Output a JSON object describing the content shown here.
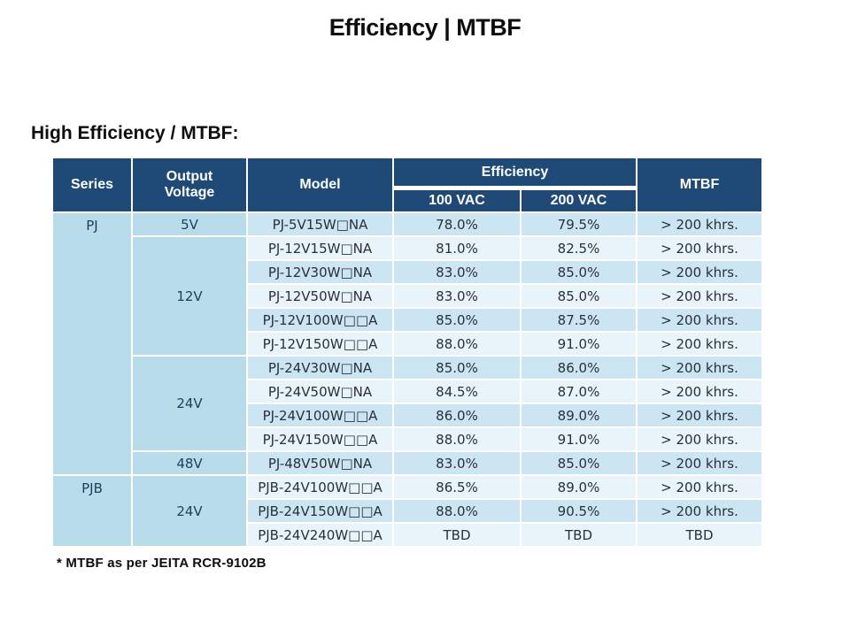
{
  "slide": {
    "title": "Efficiency | MTBF",
    "subtitle": "High Efficiency / MTBF:",
    "footnote": "* MTBF as per JEITA RCR-9102B"
  },
  "colors": {
    "header_bg": "#1f4a78",
    "group_cell_bg": "#b9dcea",
    "row_dark_bg": "#cbe6f2",
    "row_light_bg": "#e9f4fa",
    "cell_text": "#2b2f38",
    "group_text": "#1c3e5c",
    "heading_text": "#0d0d0d"
  },
  "table": {
    "headers": {
      "series": "Series",
      "output_voltage": "Output\nVoltage",
      "model": "Model",
      "efficiency": "Efficiency",
      "vac_100": "100 VAC",
      "vac_200": "200 VAC",
      "mtbf": "MTBF"
    },
    "series_groups": [
      {
        "label": "PJ",
        "row_count": 11
      },
      {
        "label": "PJB",
        "row_count": 3
      }
    ],
    "voltage_groups": [
      {
        "label": "5V",
        "row_count": 1
      },
      {
        "label": "12V",
        "row_count": 5
      },
      {
        "label": "24V",
        "row_count": 4
      },
      {
        "label": "48V",
        "row_count": 1
      },
      {
        "label": "24V",
        "row_count": 3
      }
    ],
    "rows": [
      {
        "model": "PJ-5V15W□NA",
        "eff_100vac": "78.0%",
        "eff_200vac": "79.5%",
        "mtbf": "> 200 khrs."
      },
      {
        "model": "PJ-12V15W□NA",
        "eff_100vac": "81.0%",
        "eff_200vac": "82.5%",
        "mtbf": "> 200 khrs."
      },
      {
        "model": "PJ-12V30W□NA",
        "eff_100vac": "83.0%",
        "eff_200vac": "85.0%",
        "mtbf": "> 200 khrs."
      },
      {
        "model": "PJ-12V50W□NA",
        "eff_100vac": "83.0%",
        "eff_200vac": "85.0%",
        "mtbf": "> 200 khrs."
      },
      {
        "model": "PJ-12V100W□□A",
        "eff_100vac": "85.0%",
        "eff_200vac": "87.5%",
        "mtbf": "> 200 khrs."
      },
      {
        "model": "PJ-12V150W□□A",
        "eff_100vac": "88.0%",
        "eff_200vac": "91.0%",
        "mtbf": "> 200 khrs."
      },
      {
        "model": "PJ-24V30W□NA",
        "eff_100vac": "85.0%",
        "eff_200vac": "86.0%",
        "mtbf": "> 200 khrs."
      },
      {
        "model": "PJ-24V50W□NA",
        "eff_100vac": "84.5%",
        "eff_200vac": "87.0%",
        "mtbf": "> 200 khrs."
      },
      {
        "model": "PJ-24V100W□□A",
        "eff_100vac": "86.0%",
        "eff_200vac": "89.0%",
        "mtbf": "> 200 khrs."
      },
      {
        "model": "PJ-24V150W□□A",
        "eff_100vac": "88.0%",
        "eff_200vac": "91.0%",
        "mtbf": "> 200 khrs."
      },
      {
        "model": "PJ-48V50W□NA",
        "eff_100vac": "83.0%",
        "eff_200vac": "85.0%",
        "mtbf": "> 200 khrs."
      },
      {
        "model": "PJB-24V100W□□A",
        "eff_100vac": "86.5%",
        "eff_200vac": "89.0%",
        "mtbf": "> 200 khrs."
      },
      {
        "model": "PJB-24V150W□□A",
        "eff_100vac": "88.0%",
        "eff_200vac": "90.5%",
        "mtbf": "> 200 khrs."
      },
      {
        "model": "PJB-24V240W□□A",
        "eff_100vac": "TBD",
        "eff_200vac": "TBD",
        "mtbf": "TBD"
      }
    ]
  }
}
